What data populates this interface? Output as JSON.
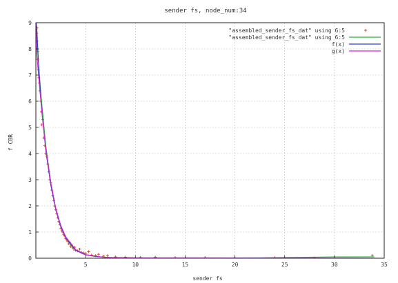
{
  "chart_data": {
    "type": "scatter",
    "title": "sender fs, node_num:34",
    "xlabel": "sender fs",
    "ylabel": "f CBR",
    "xlim": [
      0,
      35
    ],
    "ylim": [
      0,
      9
    ],
    "x_ticks": [
      5,
      10,
      15,
      20,
      25,
      30,
      35
    ],
    "y_ticks": [
      0,
      1,
      2,
      3,
      4,
      5,
      6,
      7,
      8,
      9
    ],
    "grid": true,
    "legend_position": "top-right",
    "colors": {
      "points": "#e8492a",
      "data_line": "#22b22e",
      "f": "#2a3fd0",
      "g": "#d623d6",
      "axis": "#222222"
    },
    "legend": [
      {
        "label": "\"assembled_sender_fs_dat\" using 6:5",
        "style": "points"
      },
      {
        "label": "\"assembled_sender_fs_dat\" using 6:5",
        "style": "data_line"
      },
      {
        "label": "f(x)",
        "style": "f"
      },
      {
        "label": "g(x)",
        "style": "g"
      }
    ],
    "series": [
      {
        "style": "points",
        "points": [
          [
            0.05,
            9.0
          ],
          [
            0.08,
            8.6
          ],
          [
            0.1,
            8.3
          ],
          [
            0.12,
            8.8
          ],
          [
            0.15,
            8.0
          ],
          [
            0.18,
            7.6
          ],
          [
            0.2,
            7.9
          ],
          [
            0.25,
            7.2
          ],
          [
            0.3,
            6.9
          ],
          [
            0.35,
            6.7
          ],
          [
            0.4,
            6.4
          ],
          [
            0.5,
            6.0
          ],
          [
            0.55,
            5.6
          ],
          [
            0.6,
            5.1
          ],
          [
            0.7,
            5.3
          ],
          [
            0.8,
            4.6
          ],
          [
            0.9,
            4.3
          ],
          [
            1.0,
            4.0
          ],
          [
            1.1,
            3.9
          ],
          [
            1.2,
            3.6
          ],
          [
            1.3,
            3.3
          ],
          [
            1.4,
            3.0
          ],
          [
            1.5,
            2.9
          ],
          [
            1.6,
            2.6
          ],
          [
            1.7,
            2.4
          ],
          [
            1.8,
            2.2
          ],
          [
            1.9,
            2.0
          ],
          [
            2.0,
            1.85
          ],
          [
            2.1,
            1.7
          ],
          [
            2.2,
            1.55
          ],
          [
            2.3,
            1.4
          ],
          [
            2.4,
            1.3
          ],
          [
            2.5,
            1.15
          ],
          [
            2.6,
            1.05
          ],
          [
            2.7,
            1.0
          ],
          [
            2.8,
            0.9
          ],
          [
            2.9,
            0.85
          ],
          [
            3.0,
            0.75
          ],
          [
            3.1,
            0.7
          ],
          [
            3.2,
            0.65
          ],
          [
            3.3,
            0.55
          ],
          [
            3.4,
            0.6
          ],
          [
            3.5,
            0.45
          ],
          [
            3.6,
            0.5
          ],
          [
            3.7,
            0.4
          ],
          [
            3.8,
            0.35
          ],
          [
            3.9,
            0.42
          ],
          [
            4.0,
            0.3
          ],
          [
            4.2,
            0.28
          ],
          [
            4.4,
            0.35
          ],
          [
            4.6,
            0.22
          ],
          [
            4.8,
            0.2
          ],
          [
            5.0,
            0.18
          ],
          [
            5.3,
            0.25
          ],
          [
            5.6,
            0.12
          ],
          [
            6.0,
            0.1
          ],
          [
            6.3,
            0.15
          ],
          [
            6.8,
            0.08
          ],
          [
            7.2,
            0.1
          ],
          [
            8.0,
            0.05
          ],
          [
            9.0,
            0.04
          ],
          [
            10.5,
            0.03
          ],
          [
            12.0,
            0.04
          ],
          [
            14.0,
            0.02
          ],
          [
            17.0,
            0.02
          ],
          [
            20.0,
            0.01
          ],
          [
            24.0,
            0.02
          ],
          [
            28.0,
            0.01
          ],
          [
            33.8,
            0.1
          ]
        ]
      },
      {
        "style": "data_line",
        "points": [
          [
            0.02,
            9.0
          ],
          [
            0.2,
            7.8
          ],
          [
            0.5,
            6.3
          ],
          [
            1.0,
            4.3
          ],
          [
            1.5,
            2.9
          ],
          [
            2.0,
            1.9
          ],
          [
            2.5,
            1.25
          ],
          [
            3.0,
            0.8
          ],
          [
            3.5,
            0.5
          ],
          [
            4.0,
            0.32
          ],
          [
            5.0,
            0.14
          ],
          [
            6.0,
            0.06
          ],
          [
            8.0,
            0.02
          ],
          [
            12.0,
            0.01
          ],
          [
            20.0,
            0.0
          ],
          [
            30.0,
            0.05
          ],
          [
            34.0,
            0.05
          ]
        ]
      },
      {
        "style": "f",
        "points": [
          [
            0.02,
            9.0
          ],
          [
            0.1,
            8.8
          ],
          [
            0.3,
            7.2
          ],
          [
            0.6,
            5.6
          ],
          [
            1.0,
            4.1
          ],
          [
            1.5,
            2.8
          ],
          [
            2.0,
            1.85
          ],
          [
            2.5,
            1.2
          ],
          [
            3.0,
            0.78
          ],
          [
            4.0,
            0.3
          ],
          [
            5.0,
            0.12
          ],
          [
            7.0,
            0.03
          ],
          [
            10.0,
            0.01
          ],
          [
            35.0,
            0.0
          ]
        ]
      },
      {
        "style": "g",
        "points": [
          [
            0.01,
            9.0
          ],
          [
            0.05,
            8.2
          ],
          [
            0.1,
            7.8
          ],
          [
            0.2,
            7.3
          ],
          [
            0.4,
            6.4
          ],
          [
            0.7,
            5.2
          ],
          [
            1.0,
            4.2
          ],
          [
            1.5,
            2.9
          ],
          [
            2.0,
            1.9
          ],
          [
            2.5,
            1.25
          ],
          [
            3.0,
            0.82
          ],
          [
            4.0,
            0.33
          ],
          [
            5.0,
            0.14
          ],
          [
            7.0,
            0.03
          ],
          [
            10.0,
            0.01
          ],
          [
            35.0,
            0.0
          ]
        ]
      }
    ]
  }
}
